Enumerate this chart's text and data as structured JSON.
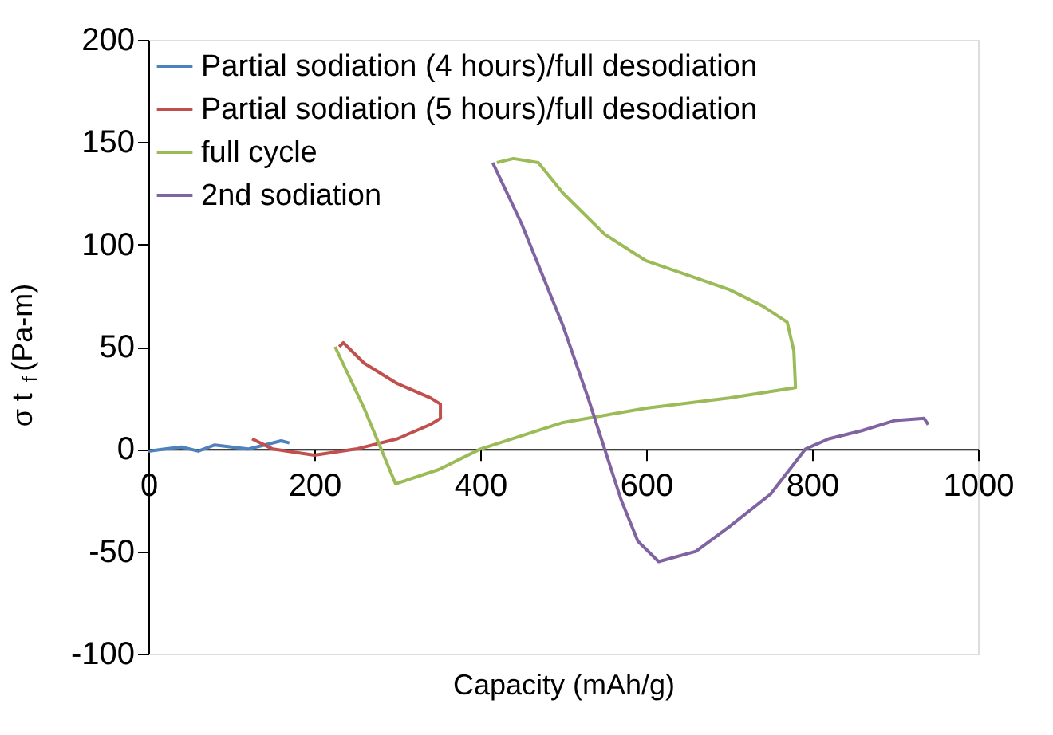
{
  "chart_data": {
    "type": "line",
    "xlabel": "Capacity (mAh/g)",
    "ylabel": "σ t$_{f}$ (Pa-m)",
    "xlim": [
      0,
      1000
    ],
    "xticks": [
      0,
      200,
      400,
      600,
      800,
      1000
    ],
    "ylim": [
      -100,
      200
    ],
    "yticks": [
      -100,
      -50,
      0,
      50,
      100,
      150,
      200
    ],
    "grid": false,
    "legend": "top left",
    "marker": "none",
    "line_style": "solid",
    "series": [
      {
        "name": "Partial sodiation (4 hours)/full desodiation",
        "color": "#4f81bd",
        "x": [
          0,
          20,
          40,
          60,
          80,
          100,
          120,
          140,
          160,
          170
        ],
        "values": [
          -1,
          0,
          1,
          -1,
          2,
          1,
          0,
          2,
          4,
          3
        ]
      },
      {
        "name": "Partial sodiation (5 hours)/full desodiation",
        "color": "#c0504d",
        "x": [
          125,
          150,
          200,
          250,
          300,
          340,
          352,
          352,
          340,
          300,
          260,
          235,
          230
        ],
        "values": [
          5,
          0,
          -3,
          0,
          5,
          12,
          15,
          22,
          25,
          32,
          42,
          52,
          50
        ]
      },
      {
        "name": "full cycle",
        "color": "#9bbb59",
        "x": [
          225,
          260,
          298,
          350,
          400,
          500,
          600,
          700,
          780,
          778,
          770,
          740,
          700,
          650,
          600,
          550,
          500,
          470,
          440,
          420
        ],
        "values": [
          50,
          20,
          -17,
          -10,
          0,
          13,
          20,
          25,
          30,
          48,
          62,
          70,
          78,
          85,
          92,
          105,
          125,
          140,
          142,
          140
        ]
      },
      {
        "name": "2nd sodiation",
        "color": "#8064a2",
        "x": [
          415,
          450,
          500,
          530,
          550,
          570,
          590,
          615,
          660,
          700,
          750,
          792,
          820,
          860,
          900,
          935,
          940
        ],
        "values": [
          140,
          110,
          60,
          25,
          0,
          -25,
          -45,
          -55,
          -50,
          -38,
          -22,
          0,
          5,
          9,
          14,
          15,
          12
        ]
      }
    ]
  }
}
